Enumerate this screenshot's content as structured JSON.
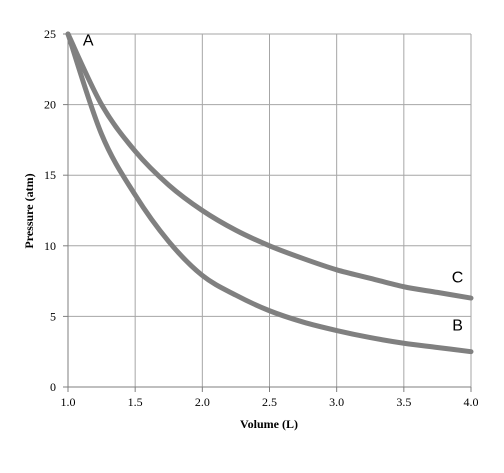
{
  "chart_data": {
    "type": "line",
    "title": "",
    "xlabel": "Volume (L)",
    "ylabel": "Pressure (atm)",
    "xlim": [
      1.0,
      4.0
    ],
    "ylim": [
      0,
      25
    ],
    "x_ticks": [
      "1.0",
      "1.5",
      "2.0",
      "2.5",
      "3.0",
      "3.5",
      "4.0"
    ],
    "y_ticks": [
      "0",
      "5",
      "10",
      "15",
      "20",
      "25"
    ],
    "grid": true,
    "legend": "none",
    "series_color": "#808080",
    "series": [
      {
        "label": "C",
        "x": [
          1.0,
          1.25,
          1.5,
          1.75,
          2.0,
          2.25,
          2.5,
          2.75,
          3.0,
          3.25,
          3.5,
          3.75,
          4.0
        ],
        "y": [
          25.0,
          20.0,
          16.7,
          14.3,
          12.5,
          11.1,
          10.0,
          9.1,
          8.3,
          7.7,
          7.1,
          6.7,
          6.3
        ]
      },
      {
        "label": "B",
        "x": [
          1.0,
          1.25,
          1.5,
          1.75,
          2.0,
          2.25,
          2.5,
          2.75,
          3.0,
          3.25,
          3.5,
          3.75,
          4.0
        ],
        "y": [
          25.0,
          17.9,
          13.6,
          10.3,
          7.9,
          6.5,
          5.4,
          4.6,
          4.0,
          3.5,
          3.1,
          2.8,
          2.5
        ]
      }
    ],
    "annotations": [
      {
        "text": "A",
        "x": 1.15,
        "y": 24.2
      },
      {
        "text": "C",
        "x": 3.9,
        "y": 7.4
      },
      {
        "text": "B",
        "x": 3.9,
        "y": 4.0
      }
    ]
  }
}
